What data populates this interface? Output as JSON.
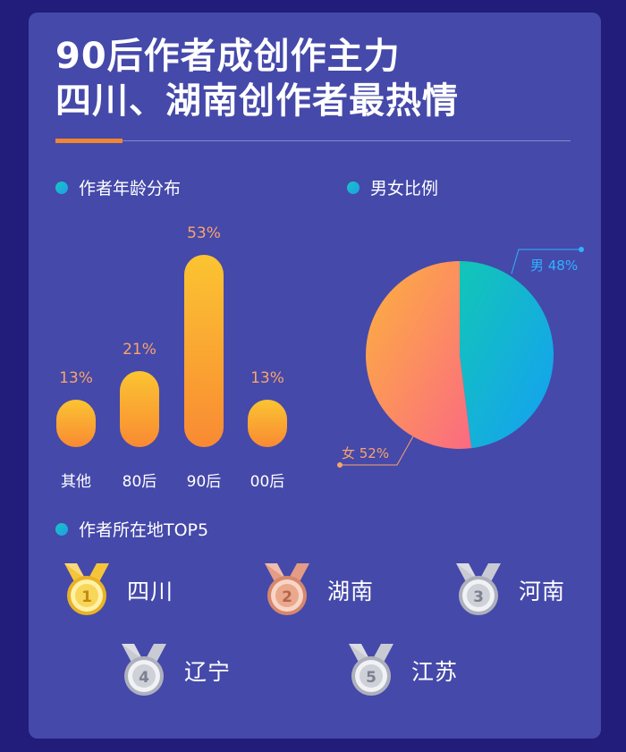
{
  "title": {
    "line1": "90后作者成创作主力",
    "line2": "四川、湖南创作者最热情"
  },
  "colors": {
    "background": "#221c7a",
    "card": "#4549aa",
    "accent": "#f0862f",
    "bar_top": "#fbc431",
    "bar_bottom": "#f98a33",
    "pie_male_a": "#12c6b6",
    "pie_male_b": "#159ff5",
    "pie_female_a": "#fcb23e",
    "pie_female_b": "#fb6a82"
  },
  "age_section": {
    "heading": "作者年龄分布"
  },
  "gender_section": {
    "heading": "男女比例"
  },
  "region_section": {
    "heading": "作者所在地TOP5"
  },
  "chart_data": [
    {
      "type": "bar",
      "categories": [
        "其他",
        "80后",
        "90后",
        "00后"
      ],
      "values": [
        13,
        21,
        53,
        13
      ],
      "value_labels": [
        "13%",
        "21%",
        "53%",
        "13%"
      ],
      "ylim": [
        0,
        53
      ]
    },
    {
      "type": "pie",
      "slices": [
        {
          "label": "男",
          "value": 48,
          "text": "男 48%"
        },
        {
          "label": "女",
          "value": 52,
          "text": "女 52%"
        }
      ]
    }
  ],
  "top5": [
    {
      "rank": "1",
      "city": "四川",
      "medal": "gold"
    },
    {
      "rank": "2",
      "city": "湖南",
      "medal": "bronze"
    },
    {
      "rank": "3",
      "city": "河南",
      "medal": "silver"
    },
    {
      "rank": "4",
      "city": "辽宁",
      "medal": "silver"
    },
    {
      "rank": "5",
      "city": "江苏",
      "medal": "silver"
    }
  ]
}
